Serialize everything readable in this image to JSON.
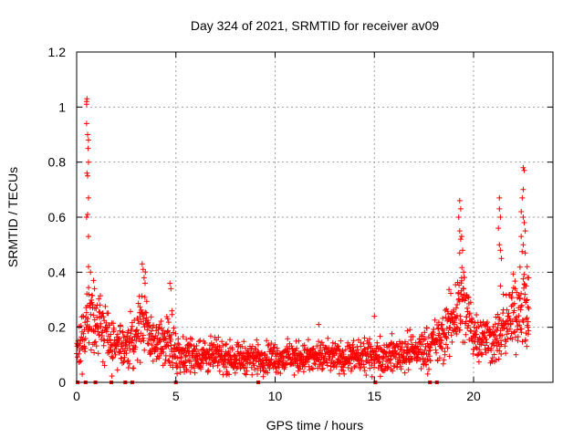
{
  "chart_data": {
    "type": "scatter",
    "title": "Day 324 of 2021, SRMTID for receiver av09",
    "xlabel": "GPS time / hours",
    "ylabel": "SRMTID / TECUs",
    "xlim": [
      0,
      24
    ],
    "ylim": [
      0,
      1.2
    ],
    "xticks": [
      0,
      5,
      10,
      15,
      20
    ],
    "xtick_labels": [
      "0",
      "5",
      "10",
      "15",
      "20"
    ],
    "yticks": [
      0,
      0.2,
      0.4,
      0.6,
      0.8,
      1.0,
      1.2
    ],
    "ytick_labels": [
      "0",
      "0.2",
      "0.4",
      "0.6",
      "0.8",
      "1",
      "1.2"
    ],
    "grid": true,
    "marker": "plus",
    "series_color": "#ff0000",
    "zero_markers_x": [
      0.05,
      0.45,
      0.95,
      1.75,
      2.45,
      2.8,
      5.0,
      9.15,
      15.05,
      17.8,
      18.15
    ],
    "profile": [
      {
        "x": 0.0,
        "base": 0.11,
        "spread": 0.06
      },
      {
        "x": 0.3,
        "base": 0.15,
        "spread": 0.1
      },
      {
        "x": 0.6,
        "base": 0.24,
        "spread": 0.14
      },
      {
        "x": 1.0,
        "base": 0.2,
        "spread": 0.12
      },
      {
        "x": 1.5,
        "base": 0.17,
        "spread": 0.12
      },
      {
        "x": 2.0,
        "base": 0.12,
        "spread": 0.1
      },
      {
        "x": 2.5,
        "base": 0.12,
        "spread": 0.08
      },
      {
        "x": 3.0,
        "base": 0.18,
        "spread": 0.12
      },
      {
        "x": 3.4,
        "base": 0.24,
        "spread": 0.16
      },
      {
        "x": 3.8,
        "base": 0.15,
        "spread": 0.1
      },
      {
        "x": 4.3,
        "base": 0.13,
        "spread": 0.09
      },
      {
        "x": 4.7,
        "base": 0.18,
        "spread": 0.12
      },
      {
        "x": 5.0,
        "base": 0.1,
        "spread": 0.07
      },
      {
        "x": 6.0,
        "base": 0.1,
        "spread": 0.07
      },
      {
        "x": 8.0,
        "base": 0.09,
        "spread": 0.06
      },
      {
        "x": 10.0,
        "base": 0.09,
        "spread": 0.06
      },
      {
        "x": 12.0,
        "base": 0.09,
        "spread": 0.06
      },
      {
        "x": 14.0,
        "base": 0.09,
        "spread": 0.06
      },
      {
        "x": 16.0,
        "base": 0.1,
        "spread": 0.07
      },
      {
        "x": 17.5,
        "base": 0.12,
        "spread": 0.08
      },
      {
        "x": 18.5,
        "base": 0.16,
        "spread": 0.1
      },
      {
        "x": 19.0,
        "base": 0.24,
        "spread": 0.14
      },
      {
        "x": 19.4,
        "base": 0.3,
        "spread": 0.18
      },
      {
        "x": 20.0,
        "base": 0.18,
        "spread": 0.1
      },
      {
        "x": 21.0,
        "base": 0.15,
        "spread": 0.09
      },
      {
        "x": 21.5,
        "base": 0.18,
        "spread": 0.12
      },
      {
        "x": 22.0,
        "base": 0.25,
        "spread": 0.14
      },
      {
        "x": 22.5,
        "base": 0.3,
        "spread": 0.2
      },
      {
        "x": 22.8,
        "base": 0.22,
        "spread": 0.12
      }
    ],
    "highlights": [
      {
        "x": 0.5,
        "y": 1.02
      },
      {
        "x": 0.52,
        "y": 1.03
      },
      {
        "x": 0.5,
        "y": 1.01
      },
      {
        "x": 0.5,
        "y": 0.94
      },
      {
        "x": 0.55,
        "y": 0.9
      },
      {
        "x": 0.6,
        "y": 0.88
      },
      {
        "x": 0.58,
        "y": 0.85
      },
      {
        "x": 0.6,
        "y": 0.8
      },
      {
        "x": 0.52,
        "y": 0.76
      },
      {
        "x": 0.55,
        "y": 0.75
      },
      {
        "x": 0.6,
        "y": 0.67
      },
      {
        "x": 0.55,
        "y": 0.61
      },
      {
        "x": 0.5,
        "y": 0.6
      },
      {
        "x": 0.6,
        "y": 0.53
      },
      {
        "x": 0.6,
        "y": 0.42
      },
      {
        "x": 0.7,
        "y": 0.4
      },
      {
        "x": 0.9,
        "y": 0.34
      },
      {
        "x": 0.85,
        "y": 0.37
      },
      {
        "x": 3.3,
        "y": 0.43
      },
      {
        "x": 3.35,
        "y": 0.41
      },
      {
        "x": 3.4,
        "y": 0.38
      },
      {
        "x": 3.45,
        "y": 0.36
      },
      {
        "x": 4.7,
        "y": 0.36
      },
      {
        "x": 4.75,
        "y": 0.34
      },
      {
        "x": 4.8,
        "y": 0.26
      },
      {
        "x": 12.2,
        "y": 0.21
      },
      {
        "x": 15.0,
        "y": 0.24
      },
      {
        "x": 19.3,
        "y": 0.66
      },
      {
        "x": 19.35,
        "y": 0.63
      },
      {
        "x": 19.25,
        "y": 0.6
      },
      {
        "x": 19.3,
        "y": 0.55
      },
      {
        "x": 19.4,
        "y": 0.53
      },
      {
        "x": 19.35,
        "y": 0.52
      },
      {
        "x": 19.45,
        "y": 0.48
      },
      {
        "x": 19.3,
        "y": 0.47
      },
      {
        "x": 19.5,
        "y": 0.4
      },
      {
        "x": 19.4,
        "y": 0.38
      },
      {
        "x": 21.3,
        "y": 0.67
      },
      {
        "x": 21.3,
        "y": 0.63
      },
      {
        "x": 21.35,
        "y": 0.6
      },
      {
        "x": 21.25,
        "y": 0.56
      },
      {
        "x": 21.3,
        "y": 0.5
      },
      {
        "x": 21.35,
        "y": 0.48
      },
      {
        "x": 21.4,
        "y": 0.45
      },
      {
        "x": 21.35,
        "y": 0.35
      },
      {
        "x": 21.5,
        "y": 0.32
      },
      {
        "x": 22.5,
        "y": 0.78
      },
      {
        "x": 22.55,
        "y": 0.77
      },
      {
        "x": 22.5,
        "y": 0.7
      },
      {
        "x": 22.45,
        "y": 0.67
      },
      {
        "x": 22.4,
        "y": 0.62
      },
      {
        "x": 22.5,
        "y": 0.6
      },
      {
        "x": 22.55,
        "y": 0.58
      },
      {
        "x": 22.6,
        "y": 0.55
      },
      {
        "x": 22.4,
        "y": 0.53
      },
      {
        "x": 22.5,
        "y": 0.5
      },
      {
        "x": 22.6,
        "y": 0.47
      },
      {
        "x": 22.7,
        "y": 0.42
      },
      {
        "x": 22.65,
        "y": 0.35
      },
      {
        "x": 22.7,
        "y": 0.3
      },
      {
        "x": 22.75,
        "y": 0.22
      }
    ],
    "point_count": 1800
  }
}
